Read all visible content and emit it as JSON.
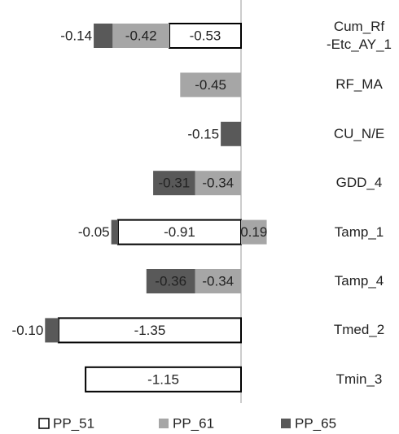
{
  "chart_data": {
    "type": "bar",
    "orientation": "horizontal",
    "stacked": true,
    "categories": [
      "Cum_Rf\n-Etc_AY_1",
      "RF_MA",
      "CU_N/E",
      "GDD_4",
      "Tamp_1",
      "Tamp_4",
      "Tmed_2",
      "Tmin_3"
    ],
    "series": [
      {
        "name": "PP_51",
        "color": "#ffffff",
        "values": [
          -0.53,
          null,
          null,
          null,
          -0.91,
          null,
          -1.35,
          -1.15
        ],
        "value_labels": [
          "-0.53",
          null,
          null,
          null,
          "-0.91",
          null,
          "-1.35",
          "-1.15"
        ]
      },
      {
        "name": "PP_61",
        "color": "#a6a6a6",
        "values": [
          -0.42,
          -0.45,
          null,
          -0.34,
          0.19,
          -0.34,
          null,
          null
        ],
        "value_labels": [
          "-0.42",
          "-0.45",
          null,
          "-0.34",
          "0.19",
          "-0.34",
          null,
          null
        ]
      },
      {
        "name": "PP_65",
        "color": "#595959",
        "values": [
          -0.14,
          null,
          -0.15,
          -0.31,
          -0.05,
          -0.36,
          -0.1,
          null
        ],
        "value_labels": [
          "-0.14",
          null,
          "-0.15",
          "-0.31",
          "-0.05",
          "-0.36",
          "-0.10",
          null
        ]
      }
    ],
    "legend": "bottom"
  }
}
